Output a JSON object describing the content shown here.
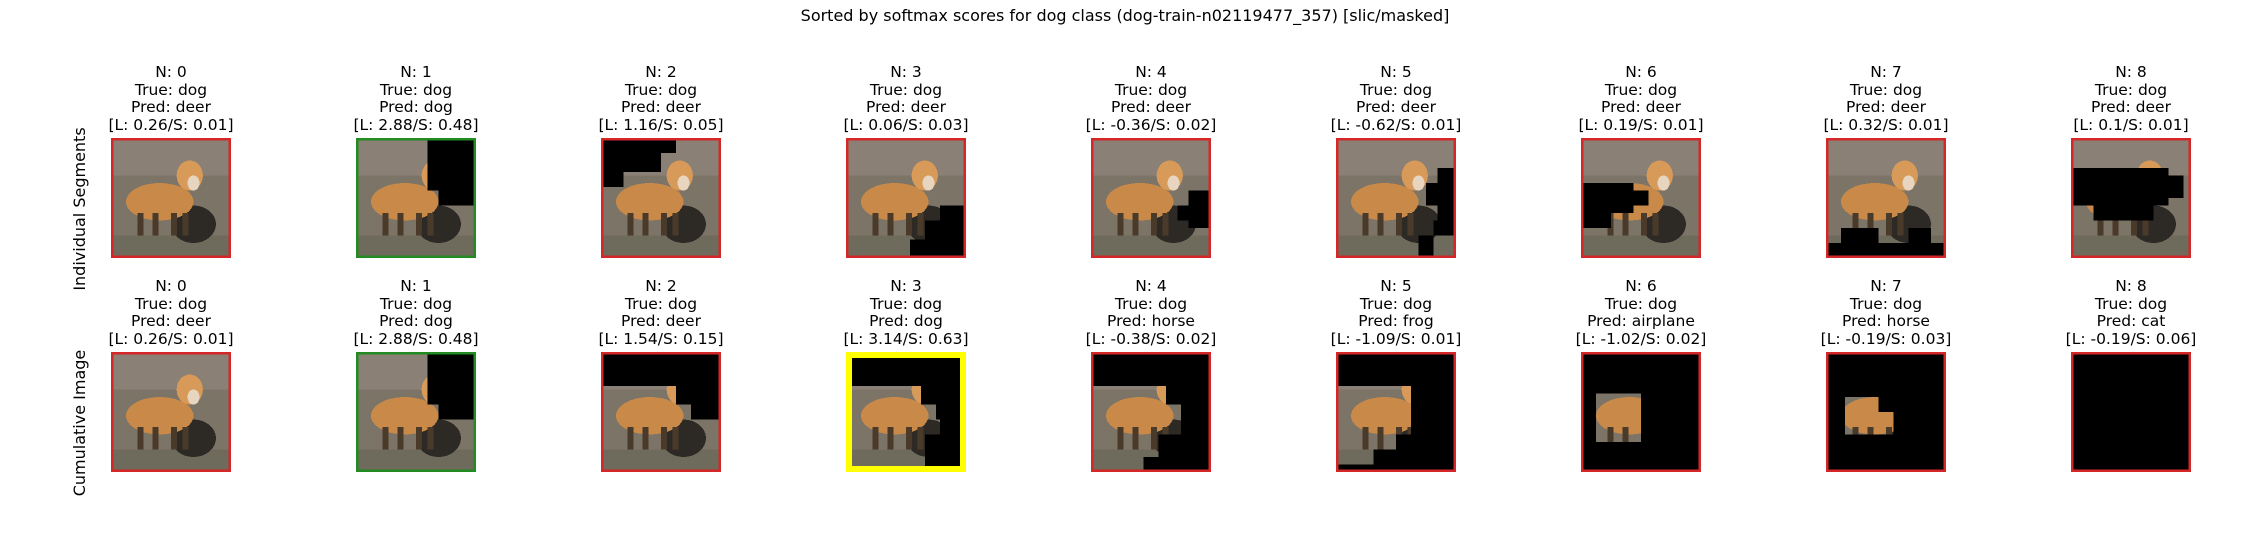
{
  "title": "Sorted by softmax scores for dog class (dog-train-n02119477_357) [slic/masked]",
  "colors": {
    "wrong": "#d62728",
    "correct": "#228b22",
    "best": "#ffff00",
    "mask": "#000000",
    "background": "#7d7468",
    "fox_body": "#c98a49"
  },
  "rows": [
    {
      "label": "Individual Segments",
      "panels": [
        {
          "n": "N: 0",
          "true": "True: dog",
          "pred": "Pred: deer",
          "score": "[L: 0.26/S: 0.01]",
          "status": "wrong",
          "mask": "none"
        },
        {
          "n": "N: 1",
          "true": "True: dog",
          "pred": "Pred: dog",
          "score": "[L: 2.88/S: 0.48]",
          "status": "correct",
          "mask": "top-right"
        },
        {
          "n": "N: 2",
          "true": "True: dog",
          "pred": "Pred: deer",
          "score": "[L: 1.16/S: 0.05]",
          "status": "wrong",
          "mask": "top-left"
        },
        {
          "n": "N: 3",
          "true": "True: dog",
          "pred": "Pred: deer",
          "score": "[L: 0.06/S: 0.03]",
          "status": "wrong",
          "mask": "bottom-right"
        },
        {
          "n": "N: 4",
          "true": "True: dog",
          "pred": "Pred: deer",
          "score": "[L: -0.36/S: 0.02]",
          "status": "wrong",
          "mask": "right-small"
        },
        {
          "n": "N: 5",
          "true": "True: dog",
          "pred": "Pred: deer",
          "score": "[L: -0.62/S: 0.01]",
          "status": "wrong",
          "mask": "right-edge"
        },
        {
          "n": "N: 6",
          "true": "True: dog",
          "pred": "Pred: deer",
          "score": "[L: 0.19/S: 0.01]",
          "status": "wrong",
          "mask": "left-middle"
        },
        {
          "n": "N: 7",
          "true": "True: dog",
          "pred": "Pred: deer",
          "score": "[L: 0.32/S: 0.01]",
          "status": "wrong",
          "mask": "bottom"
        },
        {
          "n": "N: 8",
          "true": "True: dog",
          "pred": "Pred: deer",
          "score": "[L: 0.1/S: 0.01]",
          "status": "wrong",
          "mask": "body"
        }
      ]
    },
    {
      "label": "Cumulative Image",
      "panels": [
        {
          "n": "N: 0",
          "true": "True: dog",
          "pred": "Pred: deer",
          "score": "[L: 0.26/S: 0.01]",
          "status": "wrong",
          "mask": "none"
        },
        {
          "n": "N: 1",
          "true": "True: dog",
          "pred": "Pred: dog",
          "score": "[L: 2.88/S: 0.48]",
          "status": "correct",
          "mask": "top-right"
        },
        {
          "n": "N: 2",
          "true": "True: dog",
          "pred": "Pred: deer",
          "score": "[L: 1.54/S: 0.15]",
          "status": "wrong",
          "mask": "cum2"
        },
        {
          "n": "N: 3",
          "true": "True: dog",
          "pred": "Pred: dog",
          "score": "[L: 3.14/S: 0.63]",
          "status": "best",
          "mask": "cum3"
        },
        {
          "n": "N: 4",
          "true": "True: dog",
          "pred": "Pred: horse",
          "score": "[L: -0.38/S: 0.02]",
          "status": "wrong",
          "mask": "cum4"
        },
        {
          "n": "N: 5",
          "true": "True: dog",
          "pred": "Pred: frog",
          "score": "[L: -1.09/S: 0.01]",
          "status": "wrong",
          "mask": "cum5"
        },
        {
          "n": "N: 6",
          "true": "True: dog",
          "pred": "Pred: airplane",
          "score": "[L: -1.02/S: 0.02]",
          "status": "wrong",
          "mask": "cum6"
        },
        {
          "n": "N: 7",
          "true": "True: dog",
          "pred": "Pred: horse",
          "score": "[L: -0.19/S: 0.03]",
          "status": "wrong",
          "mask": "cum7"
        },
        {
          "n": "N: 8",
          "true": "True: dog",
          "pred": "Pred: cat",
          "score": "[L: -0.19/S: 0.06]",
          "status": "wrong",
          "mask": "all"
        }
      ]
    }
  ],
  "chart_data": {
    "type": "table",
    "title": "Sorted by softmax scores for dog class (dog-train-n02119477_357) [slic/masked]",
    "rows": [
      "Individual Segments",
      "Cumulative Image"
    ],
    "columns": [
      "N: 0",
      "N: 1",
      "N: 2",
      "N: 3",
      "N: 4",
      "N: 5",
      "N: 6",
      "N: 7",
      "N: 8"
    ],
    "series": [
      {
        "name": "Individual Segments",
        "pred": [
          "deer",
          "dog",
          "deer",
          "deer",
          "deer",
          "deer",
          "deer",
          "deer",
          "deer"
        ],
        "logit": [
          0.26,
          2.88,
          1.16,
          0.06,
          -0.36,
          -0.62,
          0.19,
          0.32,
          0.1
        ],
        "softmax": [
          0.01,
          0.48,
          0.05,
          0.03,
          0.02,
          0.01,
          0.01,
          0.01,
          0.01
        ]
      },
      {
        "name": "Cumulative Image",
        "pred": [
          "deer",
          "dog",
          "deer",
          "dog",
          "horse",
          "frog",
          "airplane",
          "horse",
          "cat"
        ],
        "logit": [
          0.26,
          2.88,
          1.54,
          3.14,
          -0.38,
          -1.09,
          -1.02,
          -0.19,
          -0.19
        ],
        "softmax": [
          0.01,
          0.48,
          0.15,
          0.63,
          0.02,
          0.01,
          0.02,
          0.03,
          0.06
        ]
      }
    ]
  }
}
